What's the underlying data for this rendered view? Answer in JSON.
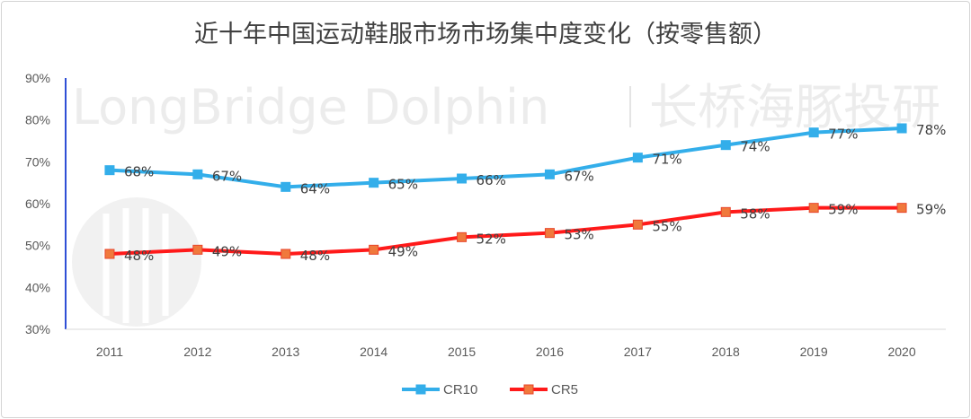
{
  "chart_data": {
    "type": "line",
    "title": "近十年中国运动鞋服市场市场集中度变化（按零售额）",
    "categories": [
      "2011",
      "2012",
      "2013",
      "2014",
      "2015",
      "2016",
      "2017",
      "2018",
      "2019",
      "2020"
    ],
    "y_ticks": [
      "30%",
      "40%",
      "50%",
      "60%",
      "70%",
      "80%",
      "90%"
    ],
    "ylim": [
      30,
      90
    ],
    "grid": false,
    "legend_position": "bottom",
    "series": [
      {
        "name": "CR10",
        "color": "#33aeea",
        "values": [
          68,
          67,
          64,
          65,
          66,
          67,
          71,
          74,
          77,
          78
        ],
        "labels": [
          "68%",
          "67%",
          "64%",
          "65%",
          "66%",
          "67%",
          "71%",
          "74%",
          "77%",
          "78%"
        ]
      },
      {
        "name": "CR5",
        "color": "#ff1a1a",
        "marker_color": "#f0793c",
        "values": [
          48,
          49,
          48,
          49,
          52,
          53,
          55,
          58,
          59,
          59
        ],
        "labels": [
          "48%",
          "49%",
          "48%",
          "49%",
          "52%",
          "53%",
          "55%",
          "58%",
          "59%",
          "59%"
        ]
      }
    ]
  },
  "watermark": {
    "text": "LongBridge Dolphin",
    "text_cn": "长桥海豚投研"
  }
}
